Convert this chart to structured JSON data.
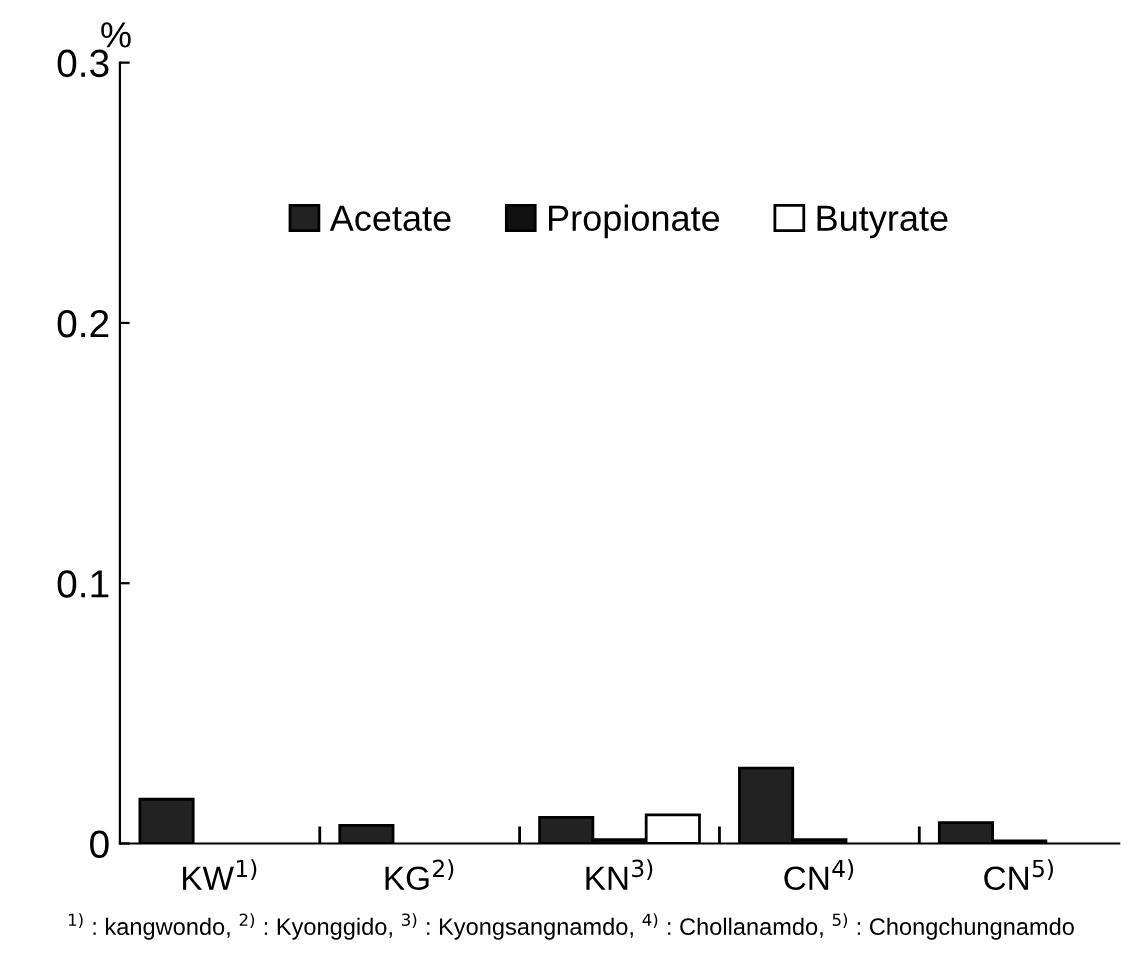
{
  "chart_data": {
    "type": "bar",
    "ylabel": "%",
    "categories": [
      "KW$^{1)}$",
      "KG$^{2)}$",
      "KN$^{3)}$",
      "CN$^{4)}$",
      "CN$^{5)}$"
    ],
    "series": [
      {
        "name": "Acetate",
        "color": "#222222",
        "values": [
          0.017,
          0.007,
          0.01,
          0.029,
          0.008
        ]
      },
      {
        "name": "Propionate",
        "color": "#111111",
        "values": [
          null,
          null,
          0.0015,
          0.0015,
          0.001
        ]
      },
      {
        "name": "Butyrate",
        "color": "#ffffff",
        "values": [
          null,
          null,
          0.011,
          null,
          null
        ]
      }
    ],
    "ylim": [
      0,
      0.3
    ],
    "yticks": [
      0,
      0.1,
      0.2,
      0.3
    ],
    "grid": false,
    "legend": "top",
    "annotations": [
      "$^{1)}$ : kangwondo, $^{2)}$ : Kyonggido, $^{3)}$ : Kyongsangnamdo, $^{4)}$ : Chollanamdo, $^{5)}$ : Chongchungnamdo"
    ]
  }
}
